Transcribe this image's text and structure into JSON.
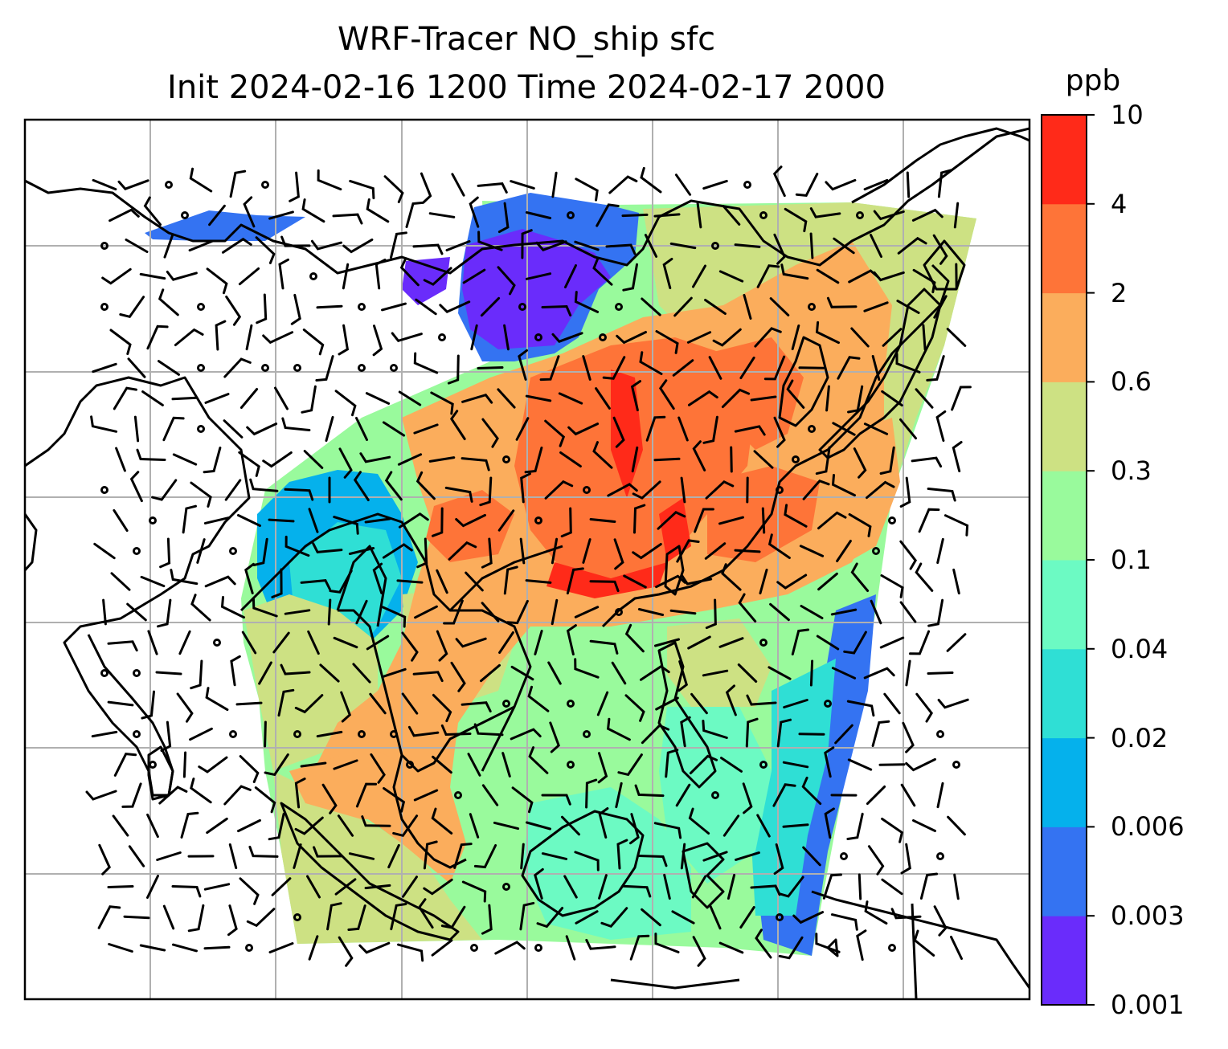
{
  "title": {
    "line1": "WRF-Tracer NO_ship sfc",
    "line2": "Init 2024-02-16 1200 Time 2024-02-17 2000"
  },
  "colorbar": {
    "unit": "ppb",
    "levels": [
      "0.001",
      "0.003",
      "0.006",
      "0.02",
      "0.04",
      "0.1",
      "0.3",
      "0.6",
      "2",
      "4",
      "10"
    ],
    "colors": [
      "#6a2cfb",
      "#3473f2",
      "#05b1ec",
      "#2fdfd5",
      "#6cfac3",
      "#99fa9c",
      "#cde183",
      "#fbad5c",
      "#fe7438",
      "#ff2a19"
    ]
  },
  "map": {
    "graticule": "on",
    "field_low_color": "#6a2cfb",
    "field_high_color": "#ff2a19",
    "barb_color": "#000000"
  }
}
